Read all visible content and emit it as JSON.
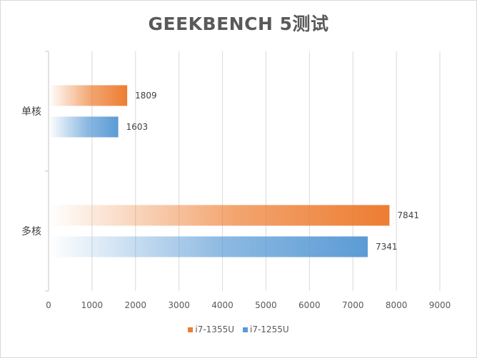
{
  "chart_data": {
    "type": "bar",
    "orientation": "horizontal",
    "title": "GEEKBENCH 5测试",
    "categories": [
      "单核",
      "多核"
    ],
    "series": [
      {
        "name": "i7-1355U",
        "values": [
          1809,
          7841
        ],
        "color": "#ed7d31"
      },
      {
        "name": "i7-1255U",
        "values": [
          1603,
          7341
        ],
        "color": "#5b9bd5"
      }
    ],
    "xlim": [
      0,
      9000
    ],
    "xticks": [
      "0",
      "1000",
      "2000",
      "3000",
      "4000",
      "5000",
      "6000",
      "7000",
      "8000",
      "9000"
    ],
    "grid": true,
    "legend_position": "bottom",
    "data_labels": true
  }
}
